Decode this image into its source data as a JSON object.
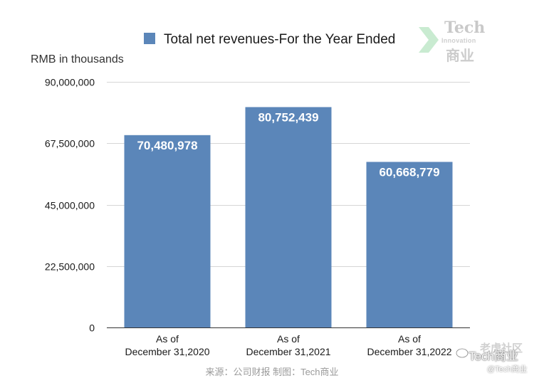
{
  "chart_data": {
    "type": "bar",
    "legend": "Total net revenues-For the Year Ended",
    "legend_placement": "top-center",
    "ylabel": "RMB in thousands",
    "xlabel": "",
    "ylim": [
      0,
      90000000
    ],
    "y_ticks": [
      "90,000,000",
      "67,500,000",
      "45,000,000",
      "22,500,000",
      "0"
    ],
    "y_tick_values": [
      90000000,
      67500000,
      45000000,
      22500000,
      0
    ],
    "grid": true,
    "categories": [
      {
        "line1": "As of",
        "line2": "December 31,2020"
      },
      {
        "line1": "As of",
        "line2": "December 31,2021"
      },
      {
        "line1": "As of",
        "line2": "December 31,2022"
      }
    ],
    "values": [
      70480978,
      80752439,
      60668779
    ],
    "value_labels": [
      "70,480,978",
      "80,752,439",
      "60,668,779"
    ],
    "bar_color": "#5b86b9"
  },
  "watermark": {
    "brand_title": "Tech",
    "brand_subtitle": "Innovation",
    "brand_cn": "商业",
    "wechat_top": "老虎社区",
    "wechat_main": "Tech商业",
    "wechat_handle": "@Tech商业"
  },
  "source_note": "来源：公司财报 制图：Tech商业"
}
